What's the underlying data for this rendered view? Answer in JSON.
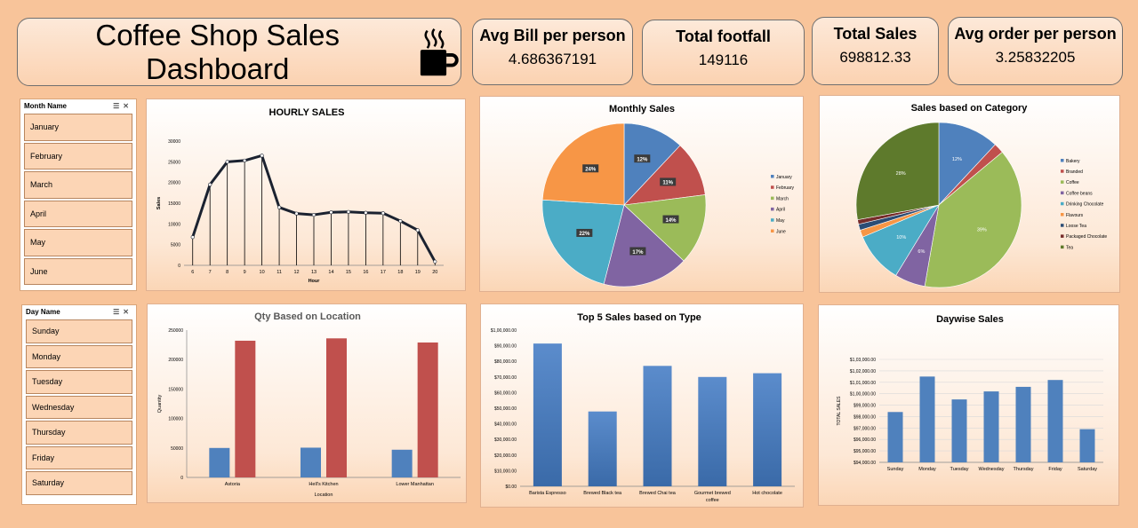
{
  "header": {
    "title": "Coffee Shop Sales Dashboard"
  },
  "kpis": [
    {
      "label": "Avg Bill per person",
      "value": "4.686367191"
    },
    {
      "label": "Total footfall",
      "value": "149116"
    },
    {
      "label": "Total Sales",
      "value": "698812.33"
    },
    {
      "label": "Avg order per person",
      "value": "3.25832205"
    }
  ],
  "slicers": {
    "month": {
      "header": "Month Name",
      "items": [
        "January",
        "February",
        "March",
        "April",
        "May",
        "June"
      ]
    },
    "day": {
      "header": "Day Name",
      "items": [
        "Sunday",
        "Monday",
        "Tuesday",
        "Wednesday",
        "Thursday",
        "Friday",
        "Saturday"
      ]
    }
  },
  "colors": {
    "blue": "#4f81bd",
    "red": "#c0504d",
    "green": "#9bbb59",
    "purple": "#8064a2",
    "aqua": "#4bacc6",
    "orange": "#f79646",
    "olive": "#5e7a2c",
    "line": "#1b2230"
  },
  "chart_data": [
    {
      "id": "hourly",
      "type": "line",
      "title": "HOURLY SALES",
      "xlabel": "Hour",
      "ylabel": "Sales",
      "x": [
        6,
        7,
        8,
        9,
        10,
        11,
        12,
        13,
        14,
        15,
        16,
        17,
        18,
        19,
        20
      ],
      "values": [
        6800,
        19500,
        25000,
        25300,
        26500,
        14000,
        12500,
        12200,
        12800,
        12900,
        12700,
        12600,
        10700,
        8500,
        900
      ],
      "ylim": [
        0,
        30000
      ],
      "yticks": [
        0,
        5000,
        10000,
        15000,
        20000,
        25000,
        30000
      ],
      "ytick_labels": [
        "0",
        "5000",
        "10000",
        "15000",
        "20000",
        "25000",
        "30000"
      ]
    },
    {
      "id": "monthly",
      "type": "pie",
      "title": "Monthly Sales",
      "labels": [
        "January",
        "February",
        "March",
        "April",
        "May",
        "June"
      ],
      "values": [
        12,
        11,
        14,
        17,
        22,
        24
      ],
      "data_labels": [
        "12%",
        "11%",
        "14%",
        "17%",
        "22%",
        "24%"
      ],
      "colors": [
        "#4f81bd",
        "#c0504d",
        "#9bbb59",
        "#8064a2",
        "#4bacc6",
        "#f79646"
      ],
      "legend": "right"
    },
    {
      "id": "category",
      "type": "pie",
      "title": "Sales based on Category",
      "labels": [
        "Bakery",
        "Branded",
        "Coffee",
        "Coffee beans",
        "Drinking Chocolate",
        "Flavours",
        "Loose Tea",
        "Packaged Chocolate",
        "Tea"
      ],
      "values": [
        12,
        2,
        39,
        6,
        10,
        1.4,
        1.2,
        0.9,
        28
      ],
      "data_labels": [
        "12%",
        "",
        "39%",
        "6%",
        "10%",
        "",
        "",
        "",
        "28%"
      ],
      "colors": [
        "#4f81bd",
        "#c0504d",
        "#9bbb59",
        "#8064a2",
        "#4bacc6",
        "#f79646",
        "#2c4d75",
        "#772c2a",
        "#5e7a2c"
      ],
      "legend": "right"
    },
    {
      "id": "location",
      "type": "bar",
      "title": "Qty Based on Location",
      "xlabel": "Location",
      "ylabel": "Quantity",
      "categories": [
        "Astoria",
        "Hell's Kitchen",
        "Lower Manhattan"
      ],
      "series": [
        {
          "values": [
            50000,
            50500,
            47000
          ],
          "color": "#4f81bd"
        },
        {
          "values": [
            232000,
            236000,
            229000
          ],
          "color": "#c0504d"
        }
      ],
      "ylim": [
        0,
        250000
      ],
      "yticks": [
        0,
        50000,
        100000,
        150000,
        200000,
        250000
      ],
      "ytick_labels": [
        "0",
        "50000",
        "100000",
        "150000",
        "200000",
        "250000"
      ]
    },
    {
      "id": "type",
      "type": "bar",
      "title": "Top 5 Sales based on Type",
      "categories": [
        "Barista Espresso",
        "Brewed Black tea",
        "Brewed Chai tea",
        "Gourmet brewed coffee",
        "Hot chocolate"
      ],
      "values": [
        91400,
        47900,
        77100,
        70000,
        72400
      ],
      "ylim": [
        0,
        100000
      ],
      "yticks": [
        0,
        10000,
        20000,
        30000,
        40000,
        50000,
        60000,
        70000,
        80000,
        90000,
        100000
      ],
      "ytick_labels": [
        "$0.00",
        "$10,000.00",
        "$20,000.00",
        "$30,000.00",
        "$40,000.00",
        "$50,000.00",
        "$60,000.00",
        "$70,000.00",
        "$80,000.00",
        "$90,000.00",
        "$1,00,000.00"
      ]
    },
    {
      "id": "daywise",
      "type": "bar",
      "title": "Daywise Sales",
      "ylabel": "TOTAL SALES",
      "categories": [
        "Sunday",
        "Monday",
        "Tuesday",
        "Wednesday",
        "Thursday",
        "Friday",
        "Saturday"
      ],
      "values": [
        98400,
        101500,
        99500,
        100200,
        100600,
        101200,
        96900
      ],
      "ylim": [
        94000,
        103000
      ],
      "yticks": [
        94000,
        95000,
        96000,
        97000,
        98000,
        99000,
        100000,
        101000,
        102000,
        103000
      ],
      "ytick_labels": [
        "$94,000.00",
        "$95,000.00",
        "$96,000.00",
        "$97,000.00",
        "$98,000.00",
        "$99,000.00",
        "$1,00,000.00",
        "$1,01,000.00",
        "$1,02,000.00",
        "$1,03,000.00"
      ]
    }
  ]
}
